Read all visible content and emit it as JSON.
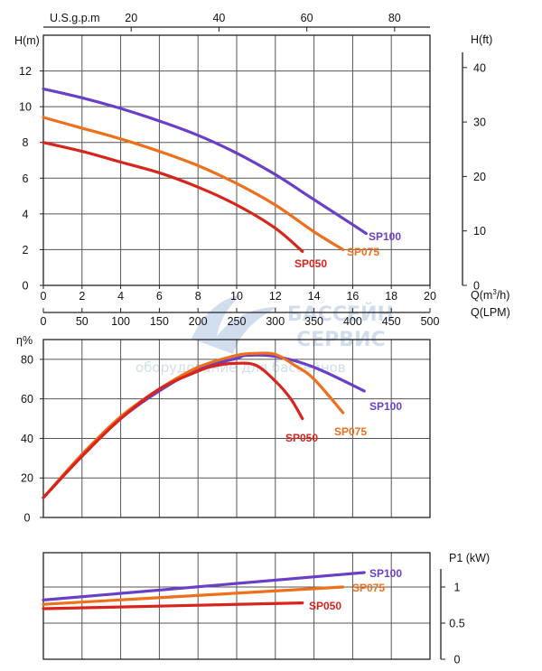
{
  "colors": {
    "SP050": "#d7251c",
    "SP075": "#ee6f1c",
    "SP100": "#6a3fc8",
    "watermark": "#c9d8ea"
  },
  "watermark": {
    "line1": "БАССЕЙН",
    "line2": "СЕРВИС",
    "line3": "оборудование для бассейнов"
  },
  "chart_data": [
    {
      "type": "line",
      "xlabel": "Q(m³/h)",
      "xlabel_main": "Q(m",
      "xlabel_sup": "3",
      "xlabel_end": "/h)",
      "xlim": [
        0,
        20
      ],
      "x_ticks": [
        "0",
        "2",
        "4",
        "6",
        "8",
        "10",
        "12",
        "14",
        "16",
        "18",
        "20"
      ],
      "ylabel": "H(m)",
      "ylim": [
        0,
        14
      ],
      "y_ticks": [
        "0",
        "2",
        "4",
        "6",
        "8",
        "10",
        "12"
      ],
      "grid": true,
      "secondary_axes": {
        "lpm": {
          "label": "Q(LPM)",
          "ticks": [
            "0",
            "50",
            "100",
            "150",
            "200",
            "250",
            "300",
            "350",
            "400",
            "450",
            "500"
          ],
          "values": [
            0,
            50,
            100,
            150,
            200,
            250,
            300,
            350,
            400,
            450,
            500
          ]
        },
        "usgpm": {
          "label": "U.S.g.p.m",
          "ticks": [
            "20",
            "40",
            "60",
            "80"
          ],
          "values": [
            20,
            40,
            60,
            80
          ]
        },
        "hft": {
          "label": "H(ft)",
          "ticks": [
            "0",
            "10",
            "20",
            "30",
            "40"
          ],
          "values": [
            0,
            10,
            20,
            30,
            40
          ]
        }
      },
      "series": [
        {
          "name": "SP100",
          "x": [
            0,
            2,
            4,
            6,
            8,
            10,
            12,
            14,
            16,
            16.7
          ],
          "y": [
            11.0,
            10.5,
            9.9,
            9.2,
            8.4,
            7.4,
            6.2,
            4.8,
            3.4,
            2.9
          ]
        },
        {
          "name": "SP075",
          "x": [
            0,
            2,
            4,
            6,
            8,
            10,
            12,
            14,
            15.5
          ],
          "y": [
            9.4,
            8.8,
            8.2,
            7.5,
            6.7,
            5.7,
            4.5,
            3.0,
            2.0
          ]
        },
        {
          "name": "SP050",
          "x": [
            0,
            2,
            4,
            6,
            8,
            10,
            12,
            13.4
          ],
          "y": [
            8.0,
            7.5,
            6.9,
            6.3,
            5.5,
            4.5,
            3.2,
            1.9
          ]
        }
      ]
    },
    {
      "type": "line",
      "ylabel": "η%",
      "xlim": [
        0,
        20
      ],
      "ylim": [
        0,
        90
      ],
      "y_ticks": [
        "0",
        "20",
        "40",
        "60",
        "80"
      ],
      "grid": true,
      "series": [
        {
          "name": "SP100",
          "x": [
            0,
            2,
            4,
            6,
            8,
            10,
            10.5,
            12,
            14,
            16.6
          ],
          "y": [
            10,
            31,
            50,
            64,
            75,
            80.5,
            82,
            81.5,
            76,
            64
          ]
        },
        {
          "name": "SP075",
          "x": [
            0,
            2,
            4,
            6,
            8,
            10,
            11,
            12,
            13,
            14,
            15.5
          ],
          "y": [
            10,
            32,
            51,
            65,
            76,
            82,
            83,
            82.5,
            77,
            70,
            53
          ]
        },
        {
          "name": "SP050",
          "x": [
            0,
            2,
            4,
            6,
            8,
            9,
            10,
            11,
            12,
            12.8,
            13.4
          ],
          "y": [
            10,
            31,
            50,
            65,
            74,
            77,
            78,
            77,
            69,
            60,
            50
          ]
        }
      ]
    },
    {
      "type": "line",
      "ylabel": "P1 (kW)",
      "xlim": [
        0,
        20
      ],
      "ylim": [
        0,
        1.3
      ],
      "y_ticks": [
        "0",
        "0.5",
        "1"
      ],
      "grid": true,
      "series": [
        {
          "name": "SP100",
          "x": [
            0,
            16.6
          ],
          "y": [
            0.82,
            1.2
          ]
        },
        {
          "name": "SP075",
          "x": [
            0,
            15.5
          ],
          "y": [
            0.76,
            1.0
          ]
        },
        {
          "name": "SP050",
          "x": [
            0,
            13.4
          ],
          "y": [
            0.7,
            0.78
          ]
        }
      ]
    }
  ]
}
